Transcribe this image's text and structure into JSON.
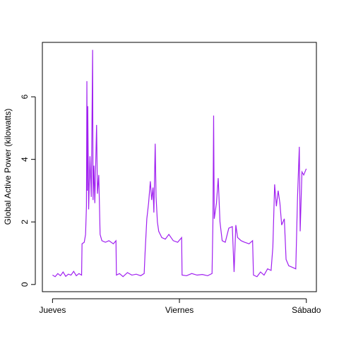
{
  "chart_data": {
    "type": "line",
    "y_label": "Global Active Power (kilowatts)",
    "x": [
      0,
      30,
      60,
      90,
      120,
      150,
      180,
      210,
      240,
      270,
      300,
      330,
      335,
      360,
      375,
      385,
      390,
      395,
      400,
      410,
      425,
      440,
      455,
      460,
      470,
      480,
      500,
      510,
      525,
      540,
      560,
      600,
      640,
      690,
      720,
      725,
      760,
      800,
      850,
      900,
      950,
      1000,
      1040,
      1050,
      1070,
      1090,
      1110,
      1125,
      1140,
      1150,
      1165,
      1175,
      1190,
      1205,
      1240,
      1280,
      1320,
      1370,
      1420,
      1465,
      1470,
      1520,
      1580,
      1640,
      1700,
      1760,
      1810,
      1820,
      1828,
      1835,
      1860,
      1880,
      1900,
      1925,
      1960,
      2000,
      2040,
      2060,
      2080,
      2100,
      2140,
      2180,
      2230,
      2270,
      2280,
      2320,
      2360,
      2400,
      2440,
      2480,
      2500,
      2520,
      2540,
      2560,
      2580,
      2600,
      2630,
      2650,
      2680,
      2720,
      2760,
      2780,
      2800,
      2810,
      2830,
      2850,
      2879
    ],
    "series": [
      {
        "name": "Global_active_power",
        "color": "#a020f0",
        "values": [
          0.3,
          0.25,
          0.35,
          0.28,
          0.4,
          0.26,
          0.33,
          0.3,
          0.42,
          0.28,
          0.35,
          0.3,
          1.3,
          1.35,
          1.6,
          2.5,
          6.5,
          3.0,
          5.7,
          2.4,
          4.1,
          2.8,
          7.5,
          2.7,
          3.8,
          2.6,
          5.1,
          2.9,
          3.5,
          1.6,
          1.4,
          1.35,
          1.4,
          1.3,
          1.4,
          0.3,
          0.35,
          0.25,
          0.38,
          0.3,
          0.33,
          0.28,
          0.35,
          1.0,
          2.1,
          2.6,
          3.3,
          2.7,
          3.1,
          2.3,
          4.5,
          2.8,
          2.0,
          1.7,
          1.5,
          1.45,
          1.6,
          1.4,
          1.35,
          1.5,
          0.3,
          0.28,
          0.35,
          0.3,
          0.32,
          0.28,
          0.35,
          2.0,
          5.4,
          2.1,
          2.6,
          3.4,
          2.0,
          1.4,
          1.35,
          1.8,
          1.85,
          0.4,
          1.9,
          1.5,
          1.4,
          1.35,
          1.3,
          1.4,
          0.3,
          0.25,
          0.4,
          0.3,
          0.5,
          0.45,
          1.2,
          3.2,
          2.5,
          3.0,
          2.6,
          1.9,
          2.1,
          0.8,
          0.6,
          0.55,
          0.5,
          2.8,
          4.4,
          1.7,
          3.6,
          3.5,
          3.7
        ]
      }
    ],
    "xlim": [
      -115,
      2994
    ],
    "xticks": [
      {
        "value": 0,
        "label": "Jueves"
      },
      {
        "value": 1440,
        "label": "Viernes"
      },
      {
        "value": 2880,
        "label": "Sábado"
      }
    ],
    "ylim": [
      -0.23,
      7.74
    ],
    "yticks": [
      0,
      2,
      4,
      6
    ]
  }
}
